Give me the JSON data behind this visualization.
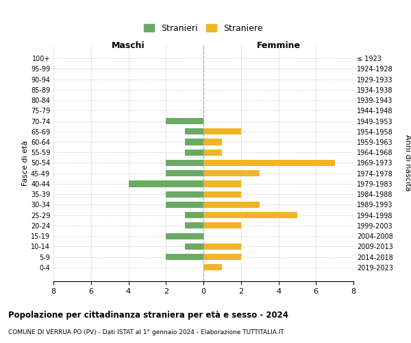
{
  "age_groups": [
    "100+",
    "95-99",
    "90-94",
    "85-89",
    "80-84",
    "75-79",
    "70-74",
    "65-69",
    "60-64",
    "55-59",
    "50-54",
    "45-49",
    "40-44",
    "35-39",
    "30-34",
    "25-29",
    "20-24",
    "15-19",
    "10-14",
    "5-9",
    "0-4"
  ],
  "birth_years": [
    "≤ 1923",
    "1924-1928",
    "1929-1933",
    "1934-1938",
    "1939-1943",
    "1944-1948",
    "1949-1953",
    "1954-1958",
    "1959-1963",
    "1964-1968",
    "1969-1973",
    "1974-1978",
    "1979-1983",
    "1984-1988",
    "1989-1993",
    "1994-1998",
    "1999-2003",
    "2004-2008",
    "2009-2013",
    "2014-2018",
    "2019-2023"
  ],
  "males": [
    0,
    0,
    0,
    0,
    0,
    0,
    2,
    1,
    1,
    1,
    2,
    2,
    4,
    2,
    2,
    1,
    1,
    2,
    1,
    2,
    0
  ],
  "females": [
    0,
    0,
    0,
    0,
    0,
    0,
    0,
    2,
    1,
    1,
    7,
    3,
    2,
    2,
    3,
    5,
    2,
    0,
    2,
    2,
    1
  ],
  "male_color": "#6aaa64",
  "female_color": "#f0b429",
  "title_main": "Popolazione per cittadinanza straniera per età e sesso - 2024",
  "title_sub": "COMUNE DI VERRUA PO (PV) - Dati ISTAT al 1° gennaio 2024 - Elaborazione TUTTITALIA.IT",
  "legend_male": "Stranieri",
  "legend_female": "Straniere",
  "xlabel_left": "Maschi",
  "xlabel_right": "Femmine",
  "ylabel_left": "Fasce di età",
  "ylabel_right": "Anni di nascita",
  "xlim": 8,
  "background_color": "#ffffff",
  "grid_color": "#cccccc"
}
